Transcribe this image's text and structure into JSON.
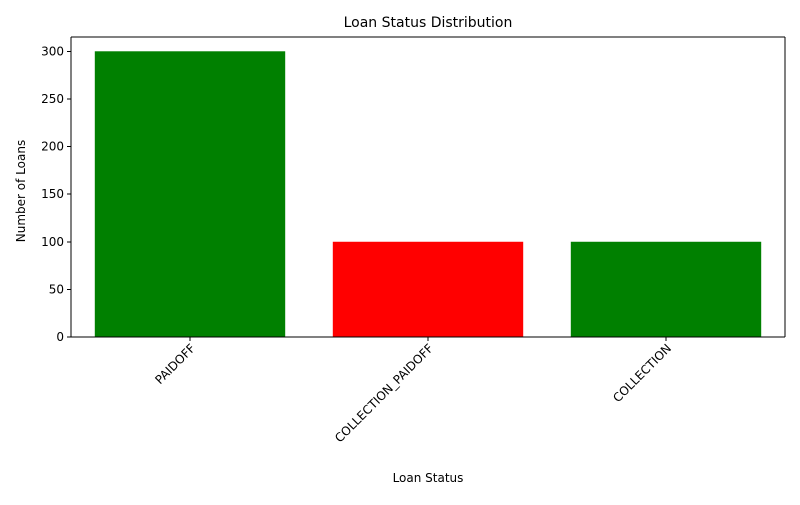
{
  "chart_data": {
    "type": "bar",
    "title": "Loan Status Distribution",
    "xlabel": "Loan Status",
    "ylabel": "Number of Loans",
    "categories": [
      "PAIDOFF",
      "COLLECTION_PAIDOFF",
      "COLLECTION"
    ],
    "values": [
      300,
      100,
      100
    ],
    "bar_colors": [
      "#008000",
      "#ff0000",
      "#008000"
    ],
    "ylim": [
      0,
      315
    ],
    "yticks": [
      0,
      50,
      100,
      150,
      200,
      250,
      300
    ],
    "x_tick_rotation_deg": 45,
    "grid": false,
    "legend": "none"
  }
}
